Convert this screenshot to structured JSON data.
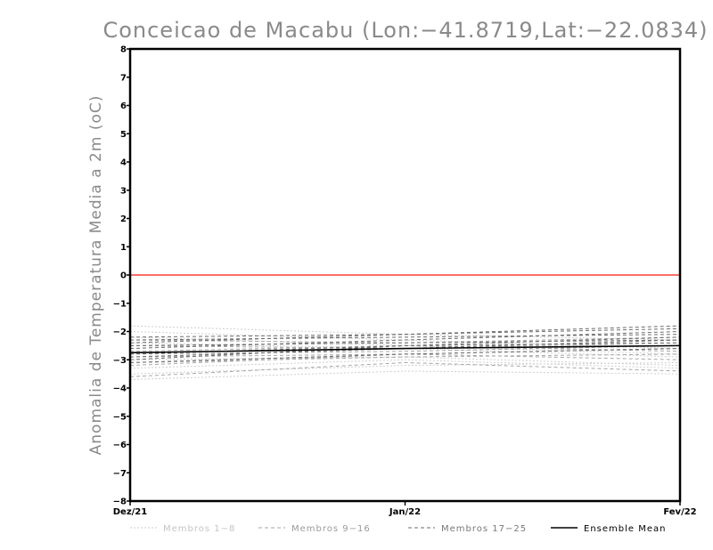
{
  "chart_data": {
    "type": "line",
    "title": "Conceicao de Macabu (Lon:−41.8719,Lat:−22.0834)",
    "xlabel": "",
    "ylabel": "Anomalia de Temperatura Media a 2m (oC)",
    "x": [
      "Dez/21",
      "Jan/22",
      "Fev/22"
    ],
    "ylim": [
      -8,
      8
    ],
    "yticks": [
      8,
      7,
      6,
      5,
      4,
      3,
      2,
      1,
      0,
      -1,
      -2,
      -3,
      -4,
      -5,
      -6,
      -7,
      -8
    ],
    "grid": false,
    "legend_position": "bottom",
    "reference_line": {
      "y": 0,
      "color": "#ff3b30"
    },
    "groups": [
      {
        "name": "Membros 1-8",
        "color": "#cfcfcf",
        "dash": "dotted",
        "series": [
          {
            "values": [
              -1.8,
              -2.1,
              -2.3
            ]
          },
          {
            "values": [
              -3.7,
              -3.4,
              -3.5
            ]
          },
          {
            "values": [
              -3.3,
              -3.0,
              -3.3
            ]
          },
          {
            "values": [
              -2.2,
              -2.5,
              -2.8
            ]
          },
          {
            "values": [
              -3.5,
              -3.2,
              -3.1
            ]
          },
          {
            "values": [
              -2.0,
              -2.3,
              -2.6
            ]
          },
          {
            "values": [
              -3.0,
              -2.9,
              -3.2
            ]
          },
          {
            "values": [
              -2.4,
              -2.6,
              -2.9
            ]
          }
        ]
      },
      {
        "name": "Membros 9-16",
        "color": "#a6a6a6",
        "dash": "dashed",
        "series": [
          {
            "values": [
              -2.3,
              -2.4,
              -2.2
            ]
          },
          {
            "values": [
              -3.2,
              -2.8,
              -3.0
            ]
          },
          {
            "values": [
              -2.8,
              -2.7,
              -2.5
            ]
          },
          {
            "values": [
              -3.6,
              -3.1,
              -3.4
            ]
          },
          {
            "values": [
              -2.5,
              -2.6,
              -2.4
            ]
          },
          {
            "values": [
              -2.9,
              -2.8,
              -2.6
            ]
          },
          {
            "values": [
              -3.1,
              -2.9,
              -2.8
            ]
          },
          {
            "values": [
              -2.7,
              -2.5,
              -2.7
            ]
          }
        ]
      },
      {
        "name": "Membros 17-25",
        "color": "#6b6b6b",
        "dash": "dashed",
        "series": [
          {
            "values": [
              -2.4,
              -2.1,
              -1.8
            ]
          },
          {
            "values": [
              -2.9,
              -2.6,
              -2.3
            ]
          },
          {
            "values": [
              -2.2,
              -2.1,
              -1.9
            ]
          },
          {
            "values": [
              -3.0,
              -2.5,
              -2.2
            ]
          },
          {
            "values": [
              -2.6,
              -2.3,
              -2.0
            ]
          },
          {
            "values": [
              -3.1,
              -2.8,
              -2.6
            ]
          },
          {
            "values": [
              -2.5,
              -2.4,
              -2.3
            ]
          },
          {
            "values": [
              -2.8,
              -2.5,
              -2.4
            ]
          },
          {
            "values": [
              -2.3,
              -2.2,
              -2.1
            ]
          }
        ]
      }
    ],
    "mean": {
      "name": "Ensemble Mean",
      "color": "#000000",
      "values": [
        -2.75,
        -2.6,
        -2.5
      ]
    },
    "legend": [
      {
        "label": "Membros 1-8",
        "color": "#cfcfcf",
        "dash": "dotted"
      },
      {
        "label": "Membros 9-16",
        "color": "#a6a6a6",
        "dash": "dashed"
      },
      {
        "label": "Membros 17-25",
        "color": "#6b6b6b",
        "dash": "dashed"
      },
      {
        "label": "Ensemble Mean",
        "color": "#000000",
        "dash": "solid"
      }
    ]
  }
}
